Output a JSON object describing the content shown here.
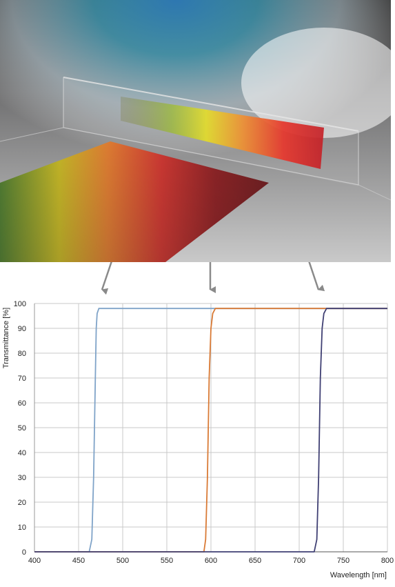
{
  "photo": {
    "name": "gradient-filter-rainbow-photo"
  },
  "chart_data": {
    "type": "line",
    "title": "",
    "xlabel": "Wavelength [nm]",
    "ylabel": "Transmittance [%]",
    "xlim": [
      400,
      800
    ],
    "ylim": [
      0,
      100
    ],
    "xticks": [
      "400",
      "450",
      "500",
      "550",
      "600",
      "650",
      "700",
      "750",
      "800"
    ],
    "yticks": [
      "0",
      "10",
      "20",
      "30",
      "40",
      "50",
      "60",
      "70",
      "80",
      "90",
      "100"
    ],
    "grid": true,
    "legend": "none",
    "series": [
      {
        "color": "#7fa3c8",
        "x": [
          400,
          462,
          465,
          467,
          469,
          470,
          471,
          473,
          800
        ],
        "y": [
          0,
          0,
          5,
          30,
          70,
          90,
          96,
          98,
          98
        ]
      },
      {
        "color": "#d97a35",
        "x": [
          400,
          592,
          594,
          596,
          598,
          600,
          602,
          605,
          800
        ],
        "y": [
          0,
          0,
          5,
          30,
          70,
          90,
          96,
          98,
          98
        ]
      },
      {
        "color": "#3f3f73",
        "x": [
          400,
          717,
          720,
          722,
          724,
          726,
          728,
          731,
          800
        ],
        "y": [
          0,
          0,
          5,
          30,
          70,
          90,
          96,
          98,
          98
        ]
      }
    ]
  }
}
